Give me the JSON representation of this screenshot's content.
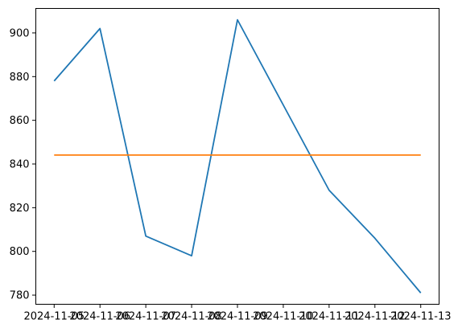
{
  "chart_data": {
    "type": "line",
    "title": "",
    "xlabel": "",
    "ylabel": "",
    "x": [
      "2024-11-05",
      "2024-11-06",
      "2024-11-07",
      "2024-11-08",
      "2024-11-09",
      "2024-11-10",
      "2024-11-11",
      "2024-11-12",
      "2024-11-13"
    ],
    "ylim": [
      775.8,
      911.2
    ],
    "yticks": [
      780,
      800,
      820,
      840,
      860,
      880,
      900
    ],
    "grid": false,
    "legend": "none",
    "series": [
      {
        "color": "#1f77b4",
        "values": [
          878,
          902,
          807,
          798,
          906,
          867,
          828,
          806,
          781
        ]
      },
      {
        "color": "#ff7f0e",
        "values": [
          844.1,
          844.1,
          844.1,
          844.1,
          844.1,
          844.1,
          844.1,
          844.1,
          844.1
        ]
      }
    ]
  }
}
